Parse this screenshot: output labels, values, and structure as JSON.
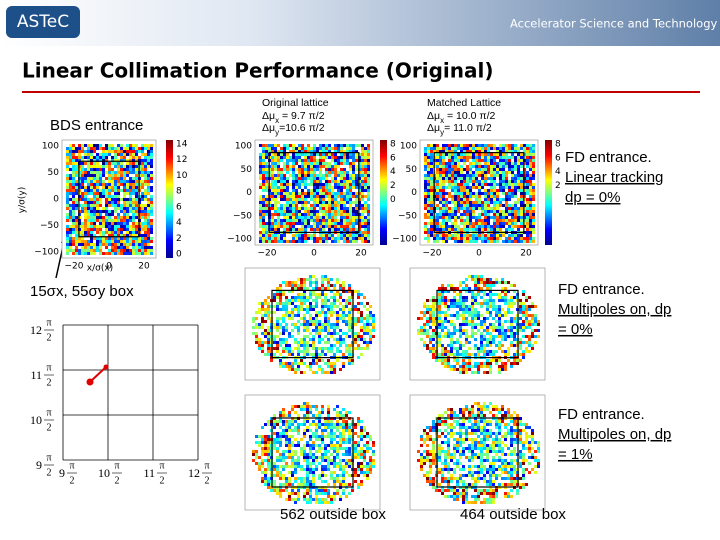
{
  "header": {
    "logo": "ASTeC",
    "centre": "Accelerator Science and Technology Centre"
  },
  "title": "Linear Collimation Performance (Original)",
  "bds_label": "BDS entrance",
  "box_label": "15σx, 55σy box",
  "columns": [
    {
      "title": "Original lattice",
      "lines": [
        {
          "pre": "Δμ",
          "sub": "x",
          "post": " = 9.7 π/2"
        },
        {
          "pre": "Δμ",
          "sub": "y",
          "post": "=10.6 π/2"
        }
      ],
      "outside": "562 outside box",
      "plot": {
        "yticks": [
          "100",
          "50",
          "0",
          "−50",
          "−100"
        ],
        "xticks": [
          "−20",
          "0",
          "20"
        ],
        "cbar": [
          "8",
          "6",
          "4",
          "2",
          "0"
        ]
      }
    },
    {
      "title": "Matched Lattice",
      "lines": [
        {
          "pre": "Δμ",
          "sub": "x",
          "post": " = 10.0 π/2"
        },
        {
          "pre": "Δμ",
          "sub": "y",
          "post": "=  11.0 π/2"
        }
      ],
      "outside": "464 outside box",
      "plot": {
        "yticks": [
          "100",
          "50",
          "0",
          "−50",
          "−100"
        ],
        "xticks": [
          "−20",
          "0",
          "20"
        ],
        "cbar": [
          "8",
          "6",
          "4",
          "2"
        ]
      }
    }
  ],
  "fd_labels": [
    {
      "lines": [
        "FD entrance.",
        "Linear tracking",
        "dp = 0%"
      ]
    },
    {
      "lines": [
        "FD entrance.",
        "Multipoles on, dp",
        "= 0%"
      ]
    },
    {
      "lines": [
        "FD entrance.",
        "Multipoles on, dp",
        "= 1%"
      ]
    }
  ],
  "bds_plot": {
    "y_label": "y/σ(y)",
    "x_label": "x/σ(x)",
    "yticks": [
      "100",
      "50",
      "0",
      "−50",
      "−100"
    ],
    "xticks": [
      "−20",
      "0",
      "20"
    ],
    "cbar": [
      "14",
      "12",
      "10",
      "8",
      "6",
      "4",
      "2",
      "0"
    ]
  },
  "phase": {
    "yticks": [
      {
        "n": "12",
        "num": "π",
        "den": "2"
      },
      {
        "n": "11",
        "num": "π",
        "den": "2"
      },
      {
        "n": "10",
        "num": "π",
        "den": "2"
      },
      {
        "n": "9",
        "num": "π",
        "den": "2"
      }
    ],
    "xticks": [
      {
        "n": "9",
        "num": "π",
        "den": "2"
      },
      {
        "n": "10",
        "num": "π",
        "den": "2"
      },
      {
        "n": "11",
        "num": "π",
        "den": "2"
      },
      {
        "n": "12",
        "num": "π",
        "den": "2"
      }
    ]
  }
}
